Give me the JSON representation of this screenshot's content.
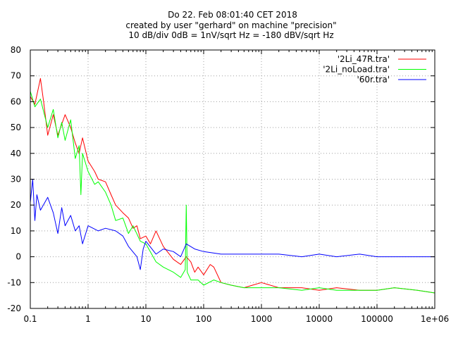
{
  "chart_data": {
    "type": "line",
    "title_lines": [
      "Do 22. Feb 08:01:40 CET 2018",
      "created by user \"gerhard\" on machine \"precision\"",
      "10 dB/div     0dB = 1nV/sqrt Hz = -180 dBV/sqrt Hz"
    ],
    "x_scale": "log",
    "xlim": [
      0.1,
      1000000
    ],
    "ylim": [
      -20,
      80
    ],
    "x_ticks": [
      {
        "value": 0.1,
        "label": "0.1"
      },
      {
        "value": 1,
        "label": "1"
      },
      {
        "value": 10,
        "label": "10"
      },
      {
        "value": 100,
        "label": "100"
      },
      {
        "value": 1000,
        "label": "1000"
      },
      {
        "value": 10000,
        "label": "10000"
      },
      {
        "value": 100000,
        "label": "100000"
      },
      {
        "value": 1000000,
        "label": "1e+06"
      }
    ],
    "y_ticks": [
      {
        "value": -20,
        "label": "-20"
      },
      {
        "value": -10,
        "label": "-10"
      },
      {
        "value": 0,
        "label": "0"
      },
      {
        "value": 10,
        "label": "10"
      },
      {
        "value": 20,
        "label": "20"
      },
      {
        "value": 30,
        "label": "30"
      },
      {
        "value": 40,
        "label": "40"
      },
      {
        "value": 50,
        "label": "50"
      },
      {
        "value": 60,
        "label": "60"
      },
      {
        "value": 70,
        "label": "70"
      },
      {
        "value": 80,
        "label": "80"
      }
    ],
    "grid": true,
    "legend_position": "top-right",
    "series": [
      {
        "name": "'2Li_47R.tra'",
        "color": "#ff0000",
        "x": [
          0.1,
          0.12,
          0.15,
          0.17,
          0.2,
          0.25,
          0.3,
          0.4,
          0.5,
          0.6,
          0.7,
          0.8,
          1,
          1.3,
          1.5,
          2,
          2.5,
          3,
          4,
          5,
          6,
          7,
          8,
          10,
          12,
          15,
          20,
          30,
          40,
          50,
          60,
          70,
          80,
          100,
          130,
          150,
          200,
          300,
          500,
          700,
          1000,
          2000,
          5000,
          10000,
          20000,
          50000,
          100000,
          200000,
          500000,
          1000000
        ],
        "y": [
          62,
          59,
          69,
          60,
          47,
          55,
          47,
          55,
          50,
          44,
          40,
          46,
          37,
          33,
          30,
          29,
          24,
          20,
          17,
          15,
          11,
          12,
          7,
          8,
          5,
          10,
          4,
          -1,
          -3,
          0,
          -2,
          -6,
          -4,
          -7,
          -3,
          -4,
          -10,
          -11,
          -12,
          -11,
          -10,
          -12,
          -12,
          -13,
          -12,
          -13,
          -13,
          -12,
          -13,
          -14
        ]
      },
      {
        "name": "'2Li_noLoad.tra'",
        "color": "#00ff00",
        "x": [
          0.1,
          0.12,
          0.15,
          0.2,
          0.25,
          0.3,
          0.35,
          0.4,
          0.5,
          0.6,
          0.7,
          0.75,
          0.8,
          1,
          1.3,
          1.5,
          2,
          2.5,
          3,
          4,
          5,
          6,
          8,
          10,
          15,
          20,
          30,
          40,
          48,
          50,
          52,
          60,
          80,
          100,
          150,
          200,
          300,
          500,
          1000,
          2000,
          5000,
          10000,
          20000,
          50000,
          100000,
          200000,
          500000,
          1000000
        ],
        "y": [
          64,
          58,
          61,
          50,
          57,
          46,
          52,
          45,
          53,
          38,
          43,
          24,
          40,
          33,
          28,
          29,
          25,
          20,
          14,
          15,
          9,
          12,
          6,
          5,
          -2,
          -4,
          -6,
          -8,
          -5,
          20,
          -6,
          -9,
          -9,
          -11,
          -9,
          -10,
          -11,
          -12,
          -12,
          -12,
          -13,
          -12,
          -13,
          -13,
          -13,
          -12,
          -13,
          -14
        ]
      },
      {
        "name": "'60r.tra'",
        "color": "#0000ff",
        "x": [
          0.1,
          0.11,
          0.12,
          0.13,
          0.15,
          0.2,
          0.25,
          0.3,
          0.35,
          0.4,
          0.5,
          0.6,
          0.7,
          0.8,
          1,
          1.5,
          2,
          3,
          4,
          5,
          7,
          8,
          9,
          10,
          15,
          20,
          30,
          40,
          50,
          70,
          100,
          200,
          500,
          1000,
          2000,
          5000,
          10000,
          20000,
          50000,
          100000,
          200000,
          500000,
          1000000
        ],
        "y": [
          21,
          30,
          14,
          24,
          18,
          23,
          17,
          9,
          19,
          12,
          16,
          10,
          12,
          5,
          12,
          10,
          11,
          10,
          8,
          4,
          0,
          -5,
          3,
          6,
          1,
          3,
          2,
          0,
          5,
          3,
          2,
          1,
          1,
          1,
          1,
          0,
          1,
          0,
          1,
          0,
          0,
          0,
          0
        ]
      }
    ]
  }
}
